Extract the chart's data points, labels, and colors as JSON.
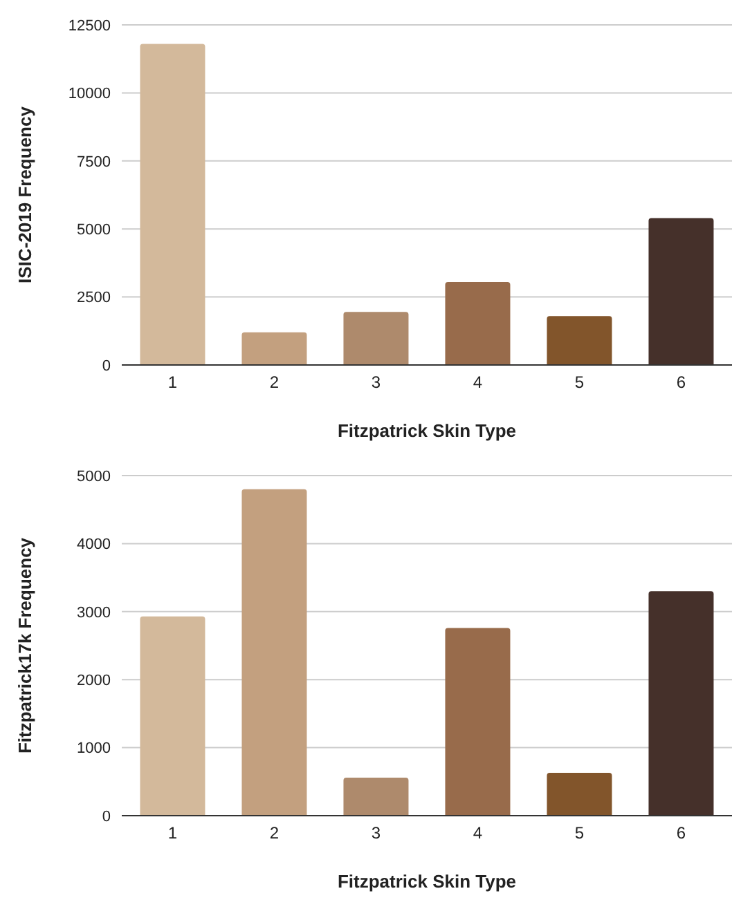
{
  "chart_data": [
    {
      "type": "bar",
      "xlabel": "Fitzpatrick Skin Type",
      "ylabel": "ISIC-2019 Frequency",
      "categories": [
        "1",
        "2",
        "3",
        "4",
        "5",
        "6"
      ],
      "values": [
        11800,
        1200,
        1950,
        3050,
        1800,
        5400
      ],
      "colors": [
        "#d3b99b",
        "#c3a07f",
        "#ae8a6c",
        "#986b4b",
        "#82552b",
        "#45302a"
      ],
      "ylim": [
        0,
        12500
      ],
      "yticks": [
        0,
        2500,
        5000,
        7500,
        10000,
        12500
      ],
      "grid": "y",
      "legend": false
    },
    {
      "type": "bar",
      "xlabel": "Fitzpatrick Skin Type",
      "ylabel": "Fitzpatrick17k Frequency",
      "categories": [
        "1",
        "2",
        "3",
        "4",
        "5",
        "6"
      ],
      "values": [
        2930,
        4800,
        560,
        2760,
        630,
        3300
      ],
      "colors": [
        "#d3b99b",
        "#c3a07f",
        "#ae8a6c",
        "#986b4b",
        "#82552b",
        "#45302a"
      ],
      "ylim": [
        0,
        5000
      ],
      "yticks": [
        0,
        1000,
        2000,
        3000,
        4000,
        5000
      ],
      "grid": "y",
      "legend": false
    }
  ]
}
